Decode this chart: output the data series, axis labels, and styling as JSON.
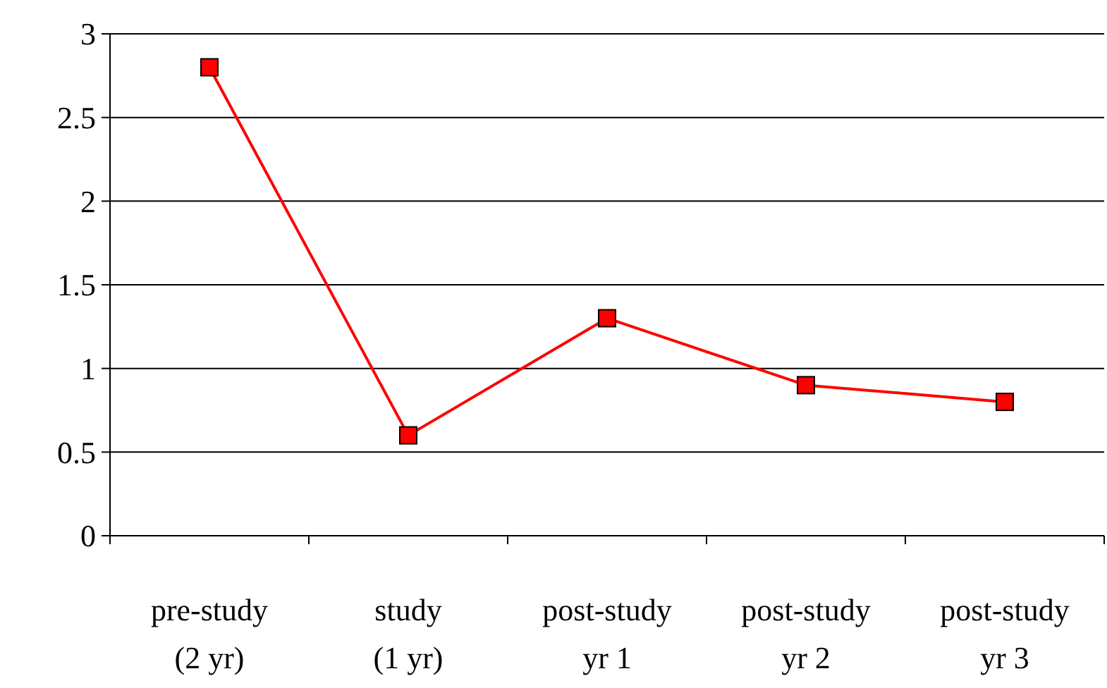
{
  "chart_data": {
    "type": "line",
    "categories": [
      "pre-study\n(2 yr)",
      "study\n(1 yr)",
      "post-study\nyr 1",
      "post-study\nyr 2",
      "post-study\nyr 3"
    ],
    "series": [
      {
        "color": "#ff0000",
        "values": [
          2.8,
          0.6,
          1.3,
          0.9,
          0.8
        ]
      }
    ],
    "ylim": [
      0,
      3
    ],
    "yticks": [
      0,
      0.5,
      1,
      1.5,
      2,
      2.5,
      3
    ],
    "grid": "y",
    "marker": "square",
    "line_style": "solid"
  }
}
